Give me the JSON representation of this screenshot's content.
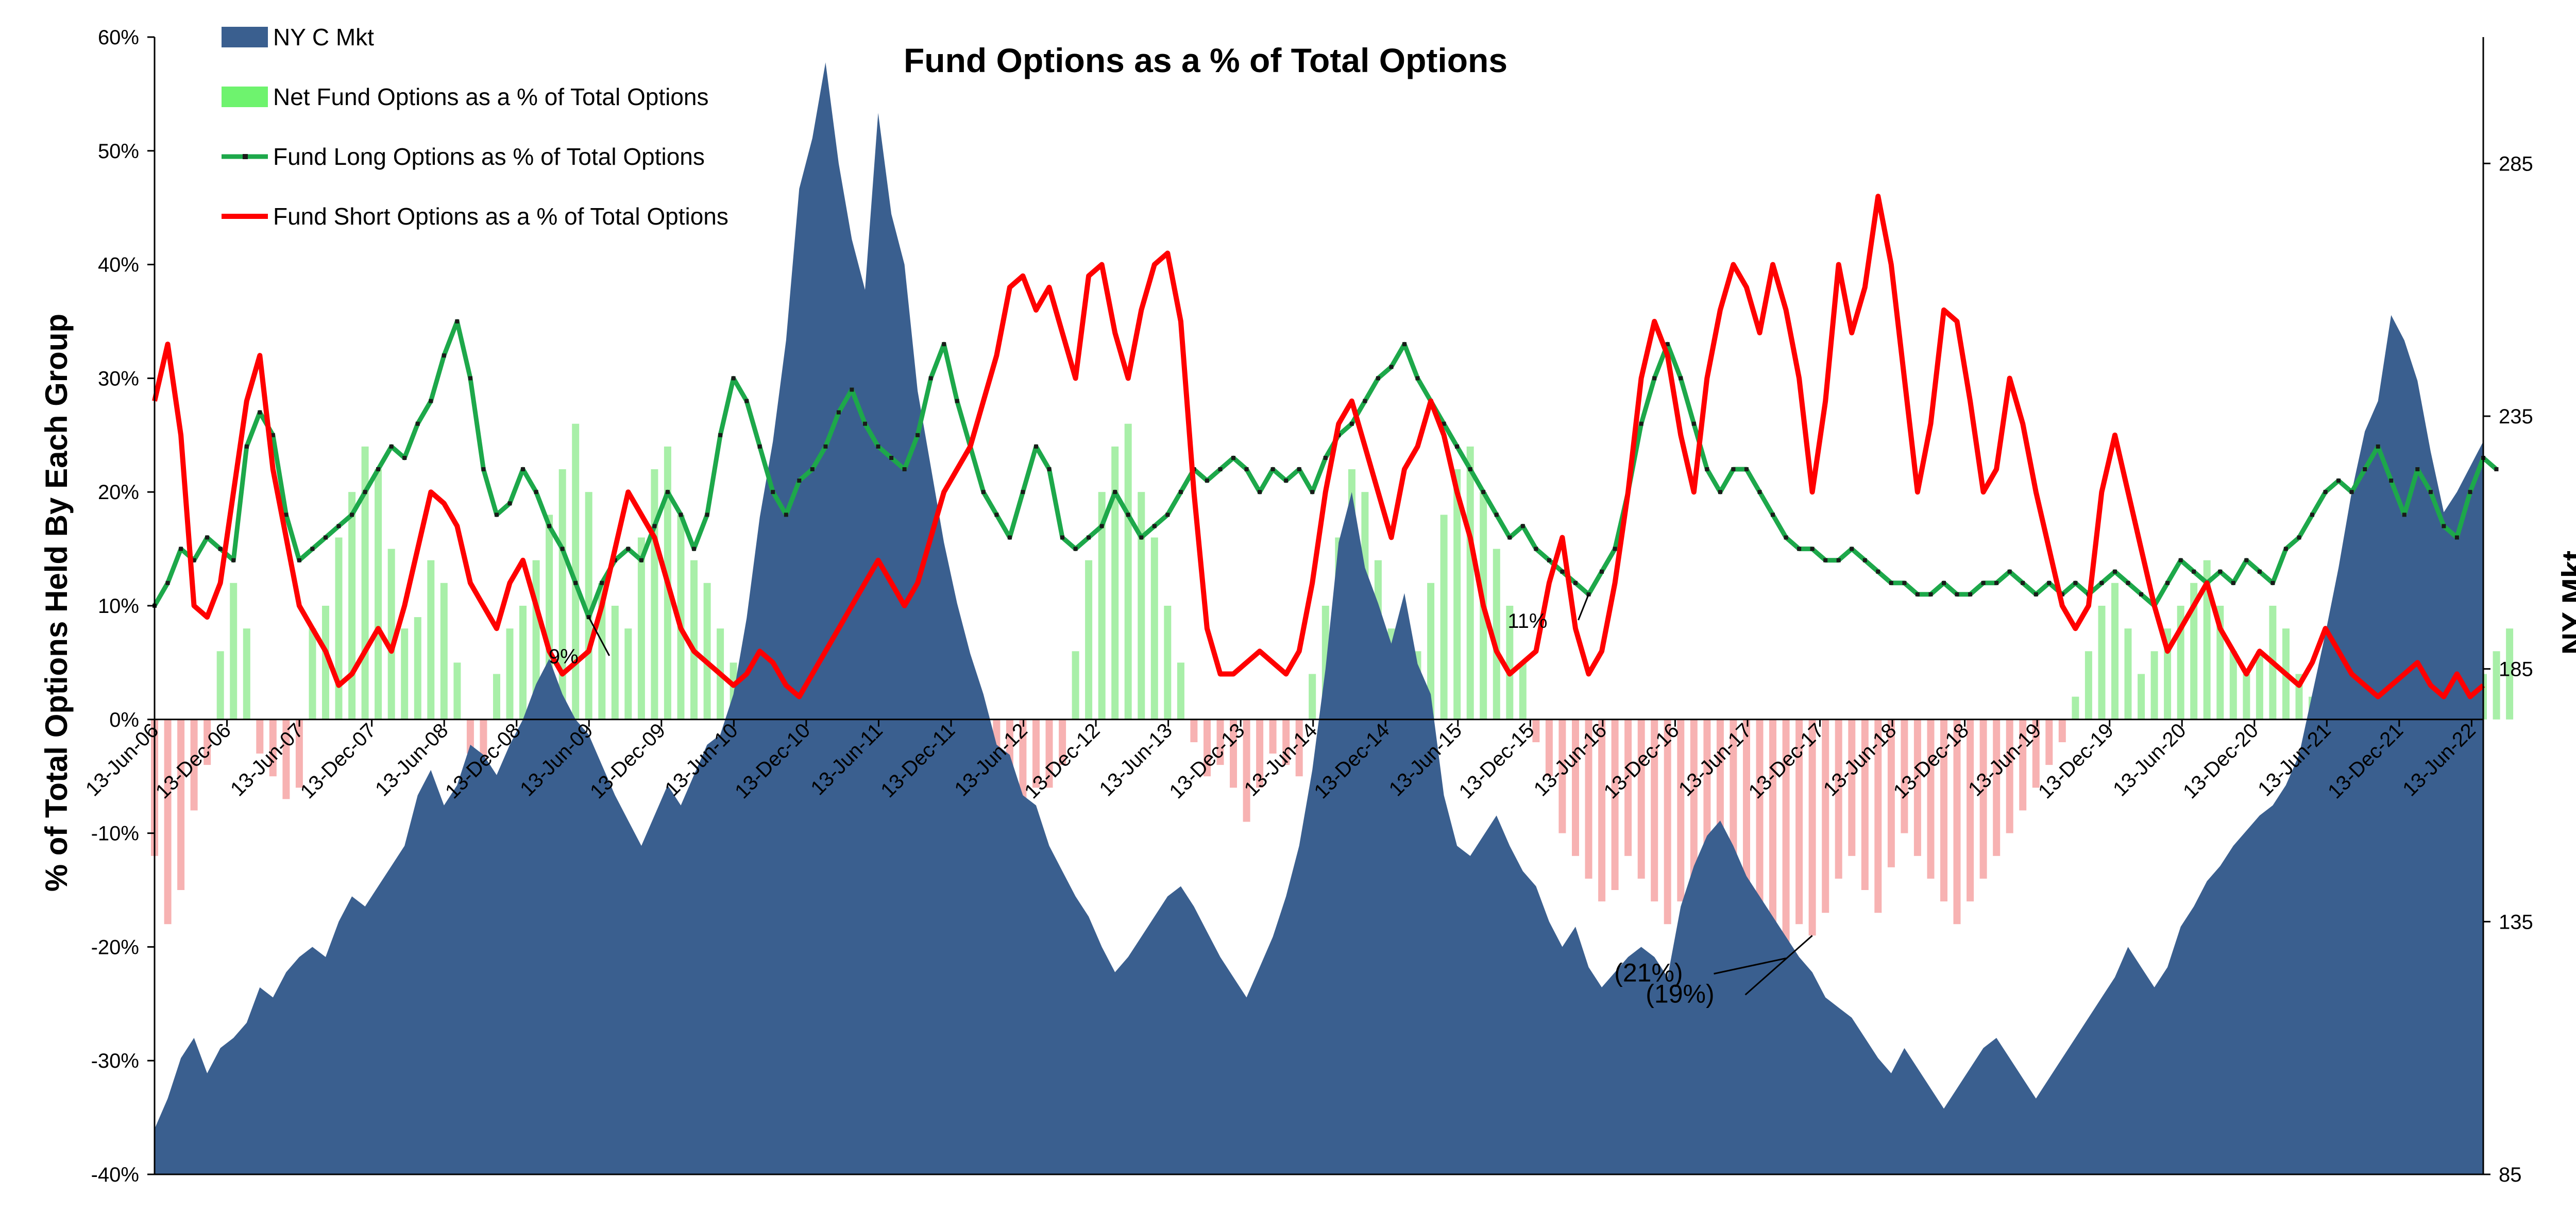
{
  "chart_data": {
    "type": "line",
    "title": "Fund Options as a % of Total Options",
    "ylabel": "% of Total Options Held By Each Group",
    "y2label": "NY Mkt",
    "ylim": [
      -0.4,
      0.6
    ],
    "y2lim": [
      85,
      310
    ],
    "yticks": [
      "60%",
      "50%",
      "40%",
      "30%",
      "20%",
      "10%",
      "0%",
      "-10%",
      "-20%",
      "-30%",
      "-40%"
    ],
    "y2ticks": [
      "285",
      "235",
      "185",
      "135",
      "85"
    ],
    "xticks": [
      "13-Jun-06",
      "13-Dec-06",
      "13-Jun-07",
      "13-Dec-07",
      "13-Jun-08",
      "13-Dec-08",
      "13-Jun-09",
      "13-Dec-09",
      "13-Jun-10",
      "13-Dec-10",
      "13-Jun-11",
      "13-Dec-11",
      "13-Jun-12",
      "13-Dec-12",
      "13-Jun-13",
      "13-Dec-13",
      "13-Jun-14",
      "13-Dec-14",
      "13-Jun-15",
      "13-Dec-15",
      "13-Jun-16",
      "13-Dec-16",
      "13-Jun-17",
      "13-Dec-17",
      "13-Jun-18",
      "13-Dec-18",
      "13-Jun-19",
      "13-Dec-19",
      "13-Jun-20",
      "13-Dec-20",
      "13-Jun-21",
      "13-Dec-21",
      "13-Jun-22"
    ],
    "legend_position": "top-left",
    "grid": false,
    "colors": {
      "mkt": "#3A5F8F",
      "net_pos": "#A8EFA8",
      "net_neg": "#F7B2B2",
      "long": "#1DA84A",
      "long_marker": "#1a1a1a",
      "short": "#FF0000"
    },
    "series": [
      {
        "name": "NY C Mkt",
        "type": "area",
        "axis": "right",
        "values": [
          94,
          100,
          108,
          112,
          105,
          110,
          112,
          115,
          122,
          120,
          125,
          128,
          130,
          128,
          135,
          140,
          138,
          142,
          146,
          150,
          160,
          165,
          158,
          162,
          170,
          168,
          164,
          170,
          175,
          182,
          187,
          180,
          175,
          172,
          166,
          160,
          155,
          150,
          156,
          162,
          158,
          164,
          170,
          172,
          180,
          195,
          215,
          230,
          250,
          280,
          290,
          305,
          285,
          270,
          260,
          295,
          275,
          265,
          240,
          225,
          210,
          198,
          188,
          180,
          170,
          168,
          160,
          158,
          150,
          145,
          140,
          136,
          130,
          125,
          128,
          132,
          136,
          140,
          142,
          138,
          133,
          128,
          124,
          120,
          126,
          132,
          140,
          150,
          165,
          185,
          210,
          220,
          205,
          198,
          190,
          200,
          186,
          180,
          160,
          150,
          148,
          152,
          156,
          150,
          145,
          142,
          135,
          130,
          134,
          126,
          122,
          125,
          128,
          130,
          128,
          124,
          138,
          146,
          152,
          155,
          150,
          144,
          140,
          136,
          132,
          128,
          125,
          120,
          118,
          116,
          112,
          108,
          105,
          110,
          106,
          102,
          98,
          102,
          106,
          110,
          112,
          108,
          104,
          100,
          104,
          108,
          112,
          116,
          120,
          124,
          130,
          126,
          122,
          126,
          134,
          138,
          143,
          146,
          150,
          153,
          156,
          158,
          162,
          168,
          180,
          192,
          205,
          220,
          232,
          238,
          255,
          250,
          242,
          228,
          216,
          220,
          225,
          230
        ]
      },
      {
        "name": "Net Fund Options as a % of Total Options",
        "type": "bar",
        "axis": "left",
        "values": [
          -0.12,
          -0.18,
          -0.15,
          -0.08,
          -0.04,
          0.06,
          0.12,
          0.08,
          -0.03,
          -0.05,
          -0.07,
          -0.06,
          0.08,
          0.1,
          0.16,
          0.2,
          0.24,
          0.22,
          0.15,
          0.08,
          0.09,
          0.14,
          0.12,
          0.05,
          -0.03,
          -0.06,
          0.04,
          0.08,
          0.1,
          0.14,
          0.18,
          0.22,
          0.26,
          0.2,
          0.12,
          0.1,
          0.08,
          0.16,
          0.22,
          0.24,
          0.18,
          0.14,
          0.12,
          0.08,
          0.05,
          -0.02,
          -0.06,
          -0.1,
          -0.08,
          -0.04,
          -0.06,
          -0.1,
          -0.12,
          -0.08,
          -0.05,
          -0.06,
          -0.1,
          -0.12,
          -0.09,
          -0.06,
          -0.07,
          -0.08,
          -0.09,
          -0.1,
          -0.12,
          -0.14,
          -0.09,
          -0.06,
          -0.06,
          -0.04,
          0.06,
          0.14,
          0.2,
          0.24,
          0.26,
          0.2,
          0.16,
          0.1,
          0.05,
          -0.02,
          -0.05,
          -0.04,
          -0.06,
          -0.09,
          -0.06,
          -0.03,
          -0.04,
          -0.05,
          0.04,
          0.1,
          0.16,
          0.22,
          0.2,
          0.14,
          0.08,
          0.04,
          0.06,
          0.12,
          0.18,
          0.22,
          0.24,
          0.2,
          0.15,
          0.1,
          0.05,
          -0.02,
          -0.05,
          -0.1,
          -0.12,
          -0.14,
          -0.16,
          -0.15,
          -0.12,
          -0.14,
          -0.16,
          -0.18,
          -0.16,
          -0.14,
          -0.12,
          -0.1,
          -0.12,
          -0.15,
          -0.18,
          -0.2,
          -0.21,
          -0.18,
          -0.19,
          -0.17,
          -0.14,
          -0.12,
          -0.15,
          -0.17,
          -0.13,
          -0.1,
          -0.12,
          -0.14,
          -0.16,
          -0.18,
          -0.16,
          -0.14,
          -0.12,
          -0.1,
          -0.08,
          -0.06,
          -0.04,
          -0.02,
          0.02,
          0.06,
          0.1,
          0.12,
          0.08,
          0.04,
          0.06,
          0.08,
          0.1,
          0.12,
          0.14,
          0.1,
          0.06,
          0.04,
          0.06,
          0.1,
          0.08,
          0.04,
          0.02,
          0.06,
          0.1,
          0.14,
          0.18,
          0.22,
          0.2,
          0.16,
          0.12,
          0.08,
          0.06,
          0.04,
          0.02,
          0.04,
          0.06,
          0.08
        ]
      },
      {
        "name": "Fund Long Options as % of Total Options",
        "type": "line",
        "axis": "left",
        "values": [
          0.1,
          0.12,
          0.15,
          0.14,
          0.16,
          0.15,
          0.14,
          0.24,
          0.27,
          0.25,
          0.18,
          0.14,
          0.15,
          0.16,
          0.17,
          0.18,
          0.2,
          0.22,
          0.24,
          0.23,
          0.26,
          0.28,
          0.32,
          0.35,
          0.3,
          0.22,
          0.18,
          0.19,
          0.22,
          0.2,
          0.17,
          0.15,
          0.12,
          0.09,
          0.12,
          0.14,
          0.15,
          0.14,
          0.17,
          0.2,
          0.18,
          0.15,
          0.18,
          0.25,
          0.3,
          0.28,
          0.24,
          0.2,
          0.18,
          0.21,
          0.22,
          0.24,
          0.27,
          0.29,
          0.26,
          0.24,
          0.23,
          0.22,
          0.25,
          0.3,
          0.33,
          0.28,
          0.24,
          0.2,
          0.18,
          0.16,
          0.2,
          0.24,
          0.22,
          0.16,
          0.15,
          0.16,
          0.17,
          0.2,
          0.18,
          0.16,
          0.17,
          0.18,
          0.2,
          0.22,
          0.21,
          0.22,
          0.23,
          0.22,
          0.2,
          0.22,
          0.21,
          0.22,
          0.2,
          0.23,
          0.25,
          0.26,
          0.28,
          0.3,
          0.31,
          0.33,
          0.3,
          0.28,
          0.26,
          0.24,
          0.22,
          0.2,
          0.18,
          0.16,
          0.17,
          0.15,
          0.14,
          0.13,
          0.12,
          0.11,
          0.13,
          0.15,
          0.2,
          0.26,
          0.3,
          0.33,
          0.3,
          0.26,
          0.22,
          0.2,
          0.22,
          0.22,
          0.2,
          0.18,
          0.16,
          0.15,
          0.15,
          0.14,
          0.14,
          0.15,
          0.14,
          0.13,
          0.12,
          0.12,
          0.11,
          0.11,
          0.12,
          0.11,
          0.11,
          0.12,
          0.12,
          0.13,
          0.12,
          0.11,
          0.12,
          0.11,
          0.12,
          0.11,
          0.12,
          0.13,
          0.12,
          0.11,
          0.1,
          0.12,
          0.14,
          0.13,
          0.12,
          0.13,
          0.12,
          0.14,
          0.13,
          0.12,
          0.15,
          0.16,
          0.18,
          0.2,
          0.21,
          0.2,
          0.22,
          0.24,
          0.21,
          0.18,
          0.22,
          0.2,
          0.17,
          0.16,
          0.2,
          0.23,
          0.22
        ]
      },
      {
        "name": "Fund Short Options as a % of Total Options",
        "type": "line",
        "axis": "left",
        "values": [
          0.28,
          0.33,
          0.25,
          0.1,
          0.09,
          0.12,
          0.2,
          0.28,
          0.32,
          0.22,
          0.16,
          0.1,
          0.08,
          0.06,
          0.03,
          0.04,
          0.06,
          0.08,
          0.06,
          0.1,
          0.15,
          0.2,
          0.19,
          0.17,
          0.12,
          0.1,
          0.08,
          0.12,
          0.14,
          0.1,
          0.06,
          0.04,
          0.05,
          0.06,
          0.1,
          0.15,
          0.2,
          0.18,
          0.16,
          0.12,
          0.08,
          0.06,
          0.05,
          0.04,
          0.03,
          0.04,
          0.06,
          0.05,
          0.03,
          0.02,
          0.04,
          0.06,
          0.08,
          0.1,
          0.12,
          0.14,
          0.12,
          0.1,
          0.12,
          0.16,
          0.2,
          0.22,
          0.24,
          0.28,
          0.32,
          0.38,
          0.39,
          0.36,
          0.38,
          0.34,
          0.3,
          0.39,
          0.4,
          0.34,
          0.3,
          0.36,
          0.4,
          0.41,
          0.35,
          0.2,
          0.08,
          0.04,
          0.04,
          0.05,
          0.06,
          0.05,
          0.04,
          0.06,
          0.12,
          0.2,
          0.26,
          0.28,
          0.24,
          0.2,
          0.16,
          0.22,
          0.24,
          0.28,
          0.25,
          0.2,
          0.16,
          0.1,
          0.06,
          0.04,
          0.05,
          0.06,
          0.12,
          0.16,
          0.08,
          0.04,
          0.06,
          0.12,
          0.2,
          0.3,
          0.35,
          0.32,
          0.25,
          0.2,
          0.3,
          0.36,
          0.4,
          0.38,
          0.34,
          0.4,
          0.36,
          0.3,
          0.2,
          0.28,
          0.4,
          0.34,
          0.38,
          0.46,
          0.4,
          0.3,
          0.2,
          0.26,
          0.36,
          0.35,
          0.28,
          0.2,
          0.22,
          0.3,
          0.26,
          0.2,
          0.15,
          0.1,
          0.08,
          0.1,
          0.2,
          0.25,
          0.2,
          0.15,
          0.1,
          0.06,
          0.08,
          0.1,
          0.12,
          0.08,
          0.06,
          0.04,
          0.06,
          0.05,
          0.04,
          0.03,
          0.05,
          0.08,
          0.06,
          0.04,
          0.03,
          0.02,
          0.03,
          0.04,
          0.05,
          0.03,
          0.02,
          0.04,
          0.02,
          0.03
        ]
      }
    ],
    "annotations": [
      {
        "text": "9%",
        "series": "long",
        "index": 33,
        "dx": -20,
        "dy": 90,
        "size": "small"
      },
      {
        "text": "11%",
        "series": "long",
        "index": 109,
        "dx": -80,
        "dy": 65,
        "size": "small"
      },
      {
        "text": "(21%)",
        "series": "net",
        "index": 124,
        "dx": -200,
        "dy": 45,
        "size": "big"
      },
      {
        "text": "(19%)",
        "series": "net",
        "index": 126,
        "dx": -190,
        "dy": 130,
        "size": "big"
      }
    ]
  }
}
